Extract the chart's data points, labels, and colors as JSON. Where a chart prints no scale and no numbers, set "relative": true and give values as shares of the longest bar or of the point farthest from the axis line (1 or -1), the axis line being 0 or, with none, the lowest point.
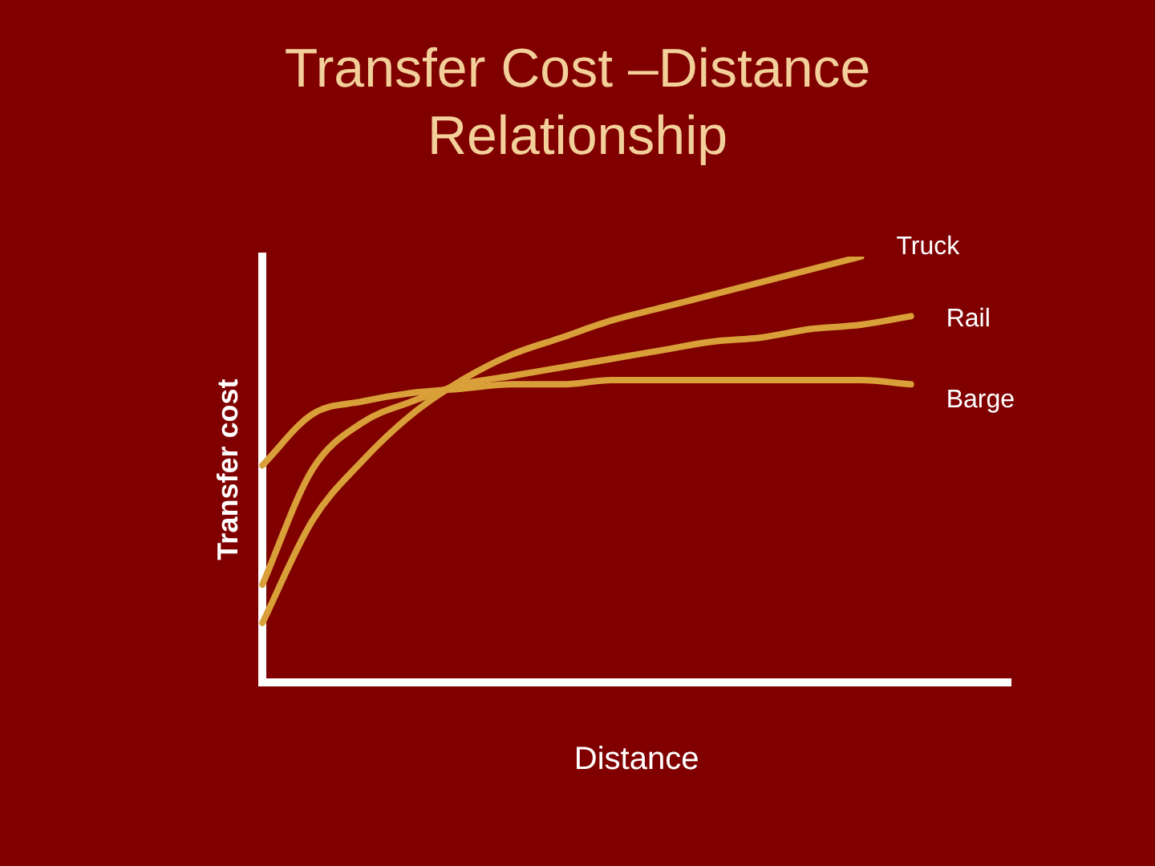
{
  "chart_data": {
    "type": "line",
    "title": "Transfer Cost –Distance Relationship",
    "xlabel": "Distance",
    "ylabel": "Transfer cost",
    "relative": true,
    "legend": false,
    "grid": false,
    "marker": "none",
    "line_style": "solid",
    "categories": [
      null,
      null,
      null,
      null,
      null,
      null,
      null,
      null,
      null,
      null,
      null,
      null,
      null,
      null,
      null,
      null
    ],
    "series": [
      {
        "name": "Truck",
        "color": "#d9a03a",
        "values": [
          0.14,
          0.38,
          0.52,
          0.63,
          0.71,
          0.77,
          0.81,
          0.85,
          0.88,
          0.91,
          0.94,
          0.97,
          1.0,
          null,
          null,
          null
        ]
      },
      {
        "name": "Rail",
        "color": "#d9a03a",
        "values": [
          0.23,
          0.5,
          0.61,
          0.66,
          0.7,
          0.72,
          0.74,
          0.76,
          0.78,
          0.8,
          0.81,
          0.83,
          0.84,
          0.86,
          null,
          null
        ]
      },
      {
        "name": "Barge",
        "color": "#d9a03a",
        "values": [
          0.51,
          0.63,
          0.66,
          0.68,
          0.69,
          0.7,
          0.7,
          0.71,
          0.71,
          0.71,
          0.71,
          0.71,
          0.71,
          0.7,
          null,
          null
        ]
      }
    ]
  }
}
